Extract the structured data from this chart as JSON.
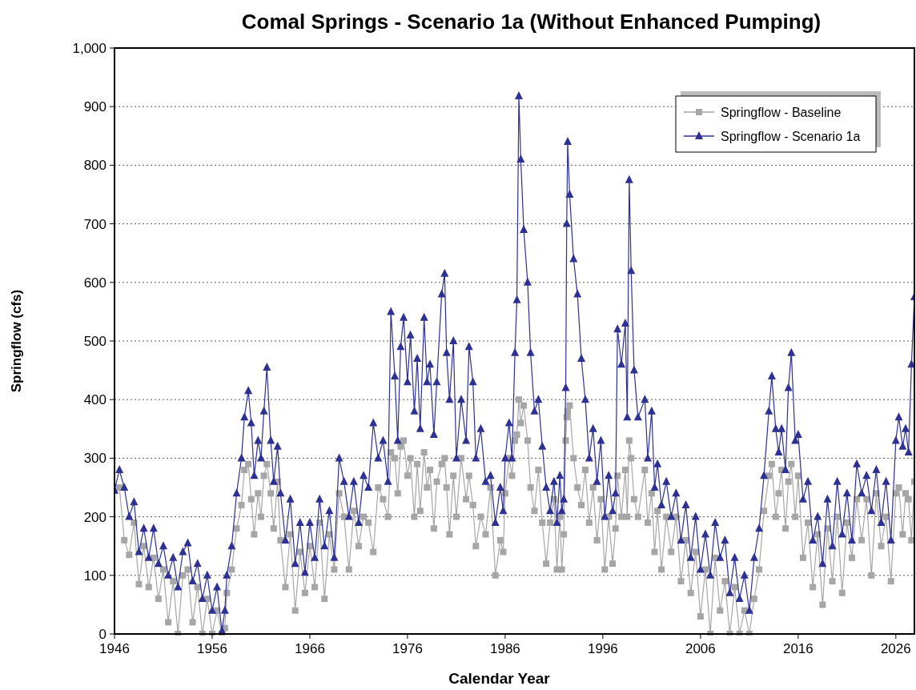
{
  "chart_data": {
    "type": "line",
    "title": "Comal Springs - Scenario 1a (Without Enhanced Pumping)",
    "xlabel": "Calendar Year",
    "ylabel": "Springflow (cfs)",
    "x": [
      1946,
      1946.5,
      1947,
      1947.5,
      1948,
      1948.5,
      1949,
      1949.5,
      1950,
      1950.5,
      1951,
      1951.5,
      1952,
      1952.5,
      1953,
      1953.5,
      1954,
      1954.5,
      1955,
      1955.5,
      1956,
      1956.5,
      1957,
      1957.3,
      1957.5,
      1958,
      1958.5,
      1959,
      1959.3,
      1959.7,
      1960,
      1960.3,
      1960.7,
      1961,
      1961.3,
      1961.6,
      1962,
      1962.3,
      1962.7,
      1963,
      1963.5,
      1964,
      1964.5,
      1965,
      1965.5,
      1966,
      1966.5,
      1967,
      1967.5,
      1968,
      1968.5,
      1969,
      1969.5,
      1970,
      1970.5,
      1971,
      1971.5,
      1972,
      1972.5,
      1973,
      1973.5,
      1974,
      1974.3,
      1974.7,
      1975,
      1975.3,
      1975.6,
      1976,
      1976.3,
      1976.7,
      1977,
      1977.3,
      1977.7,
      1978,
      1978.3,
      1978.7,
      1979,
      1979.5,
      1979.8,
      1980,
      1980.3,
      1980.7,
      1981,
      1981.5,
      1982,
      1982.3,
      1982.7,
      1983,
      1983.5,
      1984,
      1984.5,
      1985,
      1985.5,
      1985.8,
      1986,
      1986.4,
      1986.7,
      1987,
      1987.2,
      1987.4,
      1987.6,
      1987.9,
      1988.3,
      1988.6,
      1989,
      1989.4,
      1989.8,
      1990.2,
      1990.6,
      1991,
      1991.3,
      1991.6,
      1991.8,
      1992,
      1992.2,
      1992.3,
      1992.4,
      1992.6,
      1993,
      1993.4,
      1993.8,
      1994.2,
      1994.6,
      1995,
      1995.4,
      1995.8,
      1996.2,
      1996.6,
      1997,
      1997.3,
      1997.5,
      1997.9,
      1998.3,
      1998.5,
      1998.7,
      1998.9,
      1999.2,
      1999.6,
      2000.3,
      2000.6,
      2001,
      2001.3,
      2001.6,
      2002,
      2002.5,
      2003,
      2003.5,
      2004,
      2004.5,
      2005,
      2005.5,
      2006,
      2006.5,
      2007,
      2007.5,
      2008,
      2008.5,
      2009,
      2009.5,
      2010,
      2010.5,
      2011,
      2011.5,
      2012,
      2012.5,
      2013,
      2013.3,
      2013.7,
      2014,
      2014.3,
      2014.7,
      2015,
      2015.3,
      2015.7,
      2016,
      2016.5,
      2017,
      2017.5,
      2018,
      2018.5,
      2019,
      2019.5,
      2020,
      2020.5,
      2021,
      2021.5,
      2022,
      2022.5,
      2023,
      2023.5,
      2024,
      2024.5,
      2025,
      2025.5,
      2026,
      2026.3,
      2026.7,
      2027,
      2027.3,
      2027.6,
      2027.9
    ],
    "series": [
      {
        "name": "Springflow - Baseline",
        "color": "#a6a6a6",
        "marker": "square",
        "values": [
          245,
          250,
          160,
          135,
          190,
          85,
          150,
          80,
          130,
          60,
          110,
          20,
          90,
          0,
          100,
          110,
          20,
          80,
          0,
          60,
          0,
          40,
          0,
          10,
          70,
          110,
          180,
          220,
          280,
          290,
          230,
          170,
          240,
          200,
          270,
          290,
          240,
          180,
          260,
          160,
          80,
          170,
          40,
          140,
          70,
          150,
          80,
          190,
          60,
          170,
          110,
          240,
          200,
          110,
          210,
          150,
          200,
          190,
          140,
          250,
          230,
          200,
          310,
          300,
          240,
          320,
          330,
          270,
          300,
          200,
          290,
          210,
          310,
          250,
          280,
          180,
          260,
          290,
          300,
          250,
          170,
          270,
          200,
          300,
          230,
          270,
          220,
          150,
          200,
          170,
          250,
          100,
          160,
          140,
          240,
          300,
          270,
          330,
          340,
          400,
          360,
          390,
          330,
          250,
          210,
          280,
          190,
          120,
          190,
          230,
          110,
          200,
          110,
          170,
          330,
          370,
          380,
          390,
          300,
          250,
          220,
          280,
          190,
          250,
          160,
          230,
          110,
          200,
          120,
          180,
          270,
          200,
          280,
          200,
          330,
          300,
          230,
          200,
          280,
          190,
          240,
          140,
          210,
          110,
          200,
          140,
          200,
          90,
          160,
          70,
          140,
          30,
          110,
          0,
          130,
          40,
          90,
          0,
          80,
          0,
          40,
          0,
          60,
          110,
          210,
          270,
          290,
          200,
          240,
          280,
          180,
          260,
          290,
          200,
          270,
          130,
          190,
          80,
          170,
          50,
          180,
          90,
          200,
          70,
          190,
          130,
          230,
          160,
          230,
          100,
          240,
          150,
          200,
          90,
          240,
          250,
          170,
          240,
          230,
          160,
          260
        ]
      },
      {
        "name": "Springflow - Scenario 1a",
        "color": "#2e3192",
        "marker": "triangle",
        "values": [
          245,
          280,
          250,
          200,
          225,
          140,
          180,
          130,
          180,
          120,
          150,
          100,
          130,
          80,
          140,
          155,
          90,
          120,
          60,
          100,
          40,
          80,
          5,
          40,
          100,
          150,
          240,
          300,
          370,
          415,
          360,
          270,
          330,
          300,
          380,
          455,
          330,
          260,
          320,
          240,
          160,
          230,
          120,
          190,
          105,
          190,
          130,
          230,
          150,
          210,
          130,
          300,
          260,
          200,
          260,
          190,
          270,
          250,
          360,
          300,
          330,
          260,
          550,
          440,
          330,
          490,
          540,
          430,
          510,
          380,
          470,
          350,
          540,
          430,
          460,
          340,
          430,
          580,
          615,
          480,
          400,
          500,
          300,
          400,
          330,
          490,
          430,
          300,
          350,
          260,
          270,
          190,
          250,
          210,
          300,
          360,
          300,
          480,
          570,
          918,
          810,
          690,
          600,
          480,
          380,
          400,
          320,
          250,
          210,
          260,
          190,
          270,
          210,
          230,
          420,
          700,
          840,
          750,
          640,
          580,
          470,
          400,
          300,
          350,
          260,
          330,
          200,
          270,
          210,
          240,
          520,
          460,
          530,
          370,
          775,
          620,
          450,
          370,
          400,
          300,
          380,
          250,
          290,
          220,
          260,
          200,
          240,
          160,
          220,
          130,
          200,
          110,
          170,
          100,
          190,
          130,
          160,
          70,
          130,
          60,
          100,
          40,
          130,
          180,
          270,
          380,
          440,
          350,
          310,
          350,
          280,
          420,
          480,
          330,
          340,
          230,
          260,
          160,
          200,
          120,
          230,
          150,
          260,
          170,
          240,
          160,
          290,
          240,
          270,
          210,
          280,
          190,
          260,
          160,
          330,
          370,
          320,
          350,
          310,
          460,
          575
        ]
      }
    ],
    "xlim": [
      1946,
      2027.9
    ],
    "xticks": [
      1946,
      1956,
      1966,
      1976,
      1986,
      1996,
      2006,
      2016,
      2026
    ],
    "ylim": [
      0,
      1000
    ],
    "yticks": [
      0,
      100,
      200,
      300,
      400,
      500,
      600,
      700,
      800,
      900,
      {
        "value": 1000,
        "label": "1,000"
      }
    ],
    "grid": "y",
    "legend": "top right"
  }
}
